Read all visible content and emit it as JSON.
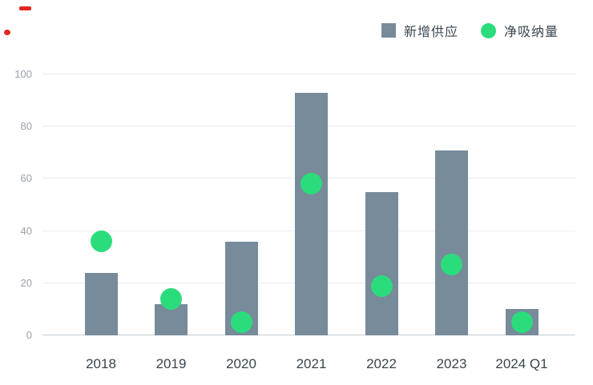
{
  "colors": {
    "background": "#ffffff",
    "bar": "#778b9a",
    "dot": "#2bdc7c",
    "grid": "#e9ebee",
    "axis_line": "#c6ccd2",
    "y_label": "#99a1a9",
    "x_label": "#39454e",
    "legend_text": "#3b4750",
    "stray_mark": "#e0261f"
  },
  "legend": {
    "items": [
      {
        "label": "新增供应",
        "swatch": "square",
        "color": "#778b9a"
      },
      {
        "label": "净吸纳量",
        "swatch": "circle",
        "color": "#2bdc7c"
      }
    ],
    "position": "top-right"
  },
  "chart_data": {
    "type": "bar",
    "categories": [
      "2018",
      "2019",
      "2020",
      "2021",
      "2022",
      "2023",
      "2024 Q1"
    ],
    "series": [
      {
        "name": "新增供应",
        "type": "bar",
        "color": "#778b9a",
        "values": [
          24,
          12,
          36,
          93,
          55,
          71,
          10
        ]
      },
      {
        "name": "净吸纳量",
        "type": "scatter",
        "color": "#2bdc7c",
        "values": [
          36,
          14,
          5,
          58,
          19,
          27,
          5
        ]
      }
    ],
    "title": "",
    "xlabel": "",
    "ylabel": "",
    "ylim": [
      0,
      100
    ],
    "yticks": [
      0,
      20,
      40,
      60,
      80,
      100
    ],
    "grid": true,
    "legend_position": "top-right"
  }
}
